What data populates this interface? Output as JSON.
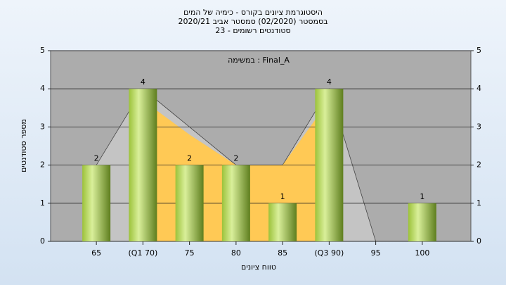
{
  "chart_data": {
    "type": "bar",
    "title": [
      "היסטוגרמת ציונים בקורס - כימיה של המים",
      "בסמסטר  (02/2020)  סמסטר אביב 2020/21",
      "סטודנטים רשומים - 23"
    ],
    "annotation": "במשימה : Final_A",
    "x_label": "טווח ציונים",
    "y_label": "מספר סטודנטים",
    "categories": [
      "65",
      "(Q1 70)",
      "75",
      "80",
      "85",
      "(Q3 90)",
      "95",
      "100"
    ],
    "values": [
      2,
      4,
      2,
      2,
      1,
      4,
      0,
      1
    ],
    "background_areas": [
      {
        "color": "#c4c4c4",
        "values": [
          2,
          4,
          3,
          2,
          2,
          4,
          0,
          0
        ]
      },
      {
        "color": "#ffc955",
        "values": [
          null,
          3.7,
          2.8,
          2,
          2,
          3.7,
          null,
          null
        ]
      }
    ],
    "ylim": [
      0,
      5
    ],
    "yticks": [
      0,
      1,
      2,
      3,
      4,
      5
    ],
    "grid": true
  }
}
